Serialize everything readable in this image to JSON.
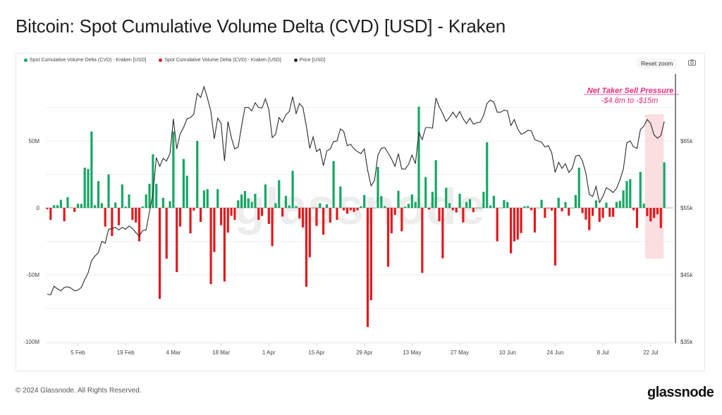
{
  "title": "Bitcoin: Spot Cumulative Volume Delta (CVD) [USD] - Kraken",
  "reset_zoom_label": "Reset zoom",
  "footer": "© 2024 Glassnode. All Rights Reserved.",
  "logo": "glassnode",
  "watermark": "glassnode",
  "icons": {
    "camera": "camera-icon"
  },
  "colors": {
    "positive": "#16a765",
    "negative": "#e3191d",
    "price": "#2b2b2b",
    "annotation": "#ec2a7c",
    "highlight": "#f9d3d6"
  },
  "chart_data": {
    "type": "bar+line",
    "title": "Bitcoin: Spot Cumulative Volume Delta (CVD) [USD] - Kraken",
    "legend": [
      {
        "name": "Spot Cumulative Volume Delta (CVD) - Kraken [USD]",
        "color": "#16a765"
      },
      {
        "name": "Spot Cumulative Volume Delta (CVD) - Kraken [USD]",
        "color": "#e3191d"
      },
      {
        "name": "Price [USD]",
        "color": "#2b2b2b"
      }
    ],
    "legend_placement": "top-left",
    "x_range_days": [
      0,
      181
    ],
    "x_ticks": [
      {
        "label": "5 Feb",
        "day": 9
      },
      {
        "label": "19 Feb",
        "day": 23
      },
      {
        "label": "4 Mar",
        "day": 37
      },
      {
        "label": "18 Mar",
        "day": 51
      },
      {
        "label": "1 Apr",
        "day": 65
      },
      {
        "label": "15 Apr",
        "day": 79
      },
      {
        "label": "29 Apr",
        "day": 93
      },
      {
        "label": "13 May",
        "day": 107
      },
      {
        "label": "27 May",
        "day": 121
      },
      {
        "label": "10 Jun",
        "day": 135
      },
      {
        "label": "24 Jun",
        "day": 149
      },
      {
        "label": "8 Jul",
        "day": 163
      },
      {
        "label": "22 Jul",
        "day": 177
      }
    ],
    "y_left": {
      "unit": "M USD",
      "range": [
        -100,
        85
      ],
      "ticks": [
        {
          "v": 50,
          "label": "50M"
        },
        {
          "v": 0,
          "label": "0"
        },
        {
          "v": -50,
          "label": "-50M"
        },
        {
          "v": -100,
          "label": "-100M"
        }
      ],
      "grid_step": 25
    },
    "y_right": {
      "unit": "k USD",
      "range": [
        35,
        74.5
      ],
      "ticks": [
        {
          "v": 65,
          "label": "$65k"
        },
        {
          "v": 55,
          "label": "$55k"
        },
        {
          "v": 45,
          "label": "$45k"
        },
        {
          "v": 35,
          "label": "$35k"
        }
      ]
    },
    "grid": true,
    "cvd_millions": [
      -1,
      -9,
      2,
      2,
      6,
      -10,
      8,
      0.3,
      -3,
      3,
      3,
      30,
      29,
      57,
      2,
      20,
      3.5,
      -14,
      25,
      -21,
      4,
      -13,
      17.5,
      1,
      10,
      -9,
      -11,
      -25,
      1,
      10,
      18,
      40,
      18,
      -68,
      7.5,
      -38,
      5,
      57,
      -48,
      -14,
      36.5,
      24,
      -19,
      -2,
      50,
      -10.5,
      13,
      14,
      -57,
      -33,
      14,
      -13,
      -55,
      -18.5,
      -6,
      -9,
      5.6,
      10,
      12.6,
      7,
      4.4,
      10.5,
      -9,
      -6,
      17.5,
      -12,
      -28.6,
      3.5,
      20.7,
      -6.5,
      9,
      1.8,
      27.7,
      1.4,
      -8,
      -14.6,
      -59,
      -37,
      0,
      -13.5,
      3.5,
      -20,
      2.6,
      -11,
      35,
      -9,
      16,
      -1.8,
      -4.4,
      -1.8,
      -3,
      -1.8,
      1.2,
      9.6,
      -89,
      -69,
      0,
      30.5,
      8.8,
      1.4,
      -44,
      -19,
      -5.3,
      12.8,
      -17.5,
      0.9,
      3,
      10,
      4.4,
      75.6,
      -48.6,
      23,
      -1.2,
      12,
      35.6,
      -10,
      -37.7,
      15,
      3.5,
      -1.8,
      -3.5,
      10.5,
      -10.9,
      4.4,
      6.5,
      -3.2,
      0,
      0,
      12,
      49,
      1.8,
      9,
      -25,
      0,
      5.8,
      4.4,
      -34,
      -25,
      -23.7,
      -18.8,
      1.2,
      1.4,
      -1.8,
      -18.4,
      0,
      6,
      -7.5,
      -0.5,
      -2,
      -43,
      7.5,
      -2.6,
      4.4,
      -5.8,
      0,
      9.6,
      30,
      -3.9,
      -8.8,
      -16.7,
      -6,
      5.6,
      -10.5,
      -7.5,
      3.9,
      -6.7,
      -6.7,
      4.4,
      5.3,
      13,
      20,
      21.4,
      -1.8,
      -15,
      26.8,
      3.2,
      -6.2,
      -10.1,
      -7.5,
      -4.8,
      -15,
      34
    ],
    "price_k": [
      42.1,
      42.0,
      43.3,
      42.9,
      42.6,
      43.1,
      43.2,
      43.0,
      42.6,
      42.7,
      43.1,
      44.3,
      45.3,
      47.1,
      47.8,
      48.3,
      50.0,
      49.7,
      51.8,
      51.9,
      52.1,
      51.7,
      52.1,
      51.8,
      52.3,
      51.9,
      51.3,
      50.8,
      51.6,
      51.7,
      54.5,
      57.1,
      62.5,
      61.2,
      62.4,
      62.0,
      63.1,
      68.3,
      63.8,
      66.1,
      67.0,
      68.3,
      68.5,
      69.0,
      72.1,
      71.5,
      73.1,
      71.4,
      69.4,
      65.3,
      68.4,
      67.6,
      62.0,
      67.9,
      65.5,
      63.8,
      64.1,
      67.2,
      70.0,
      70.0,
      69.5,
      70.7,
      70.0,
      69.9,
      71.3,
      69.7,
      65.5,
      66.0,
      68.5,
      67.8,
      68.9,
      69.4,
      71.6,
      69.1,
      70.6,
      70.0,
      67.2,
      63.9,
      65.6,
      63.4,
      63.8,
      61.3,
      63.5,
      63.8,
      64.9,
      65.0,
      66.8,
      66.4,
      64.3,
      64.5,
      63.8,
      63.4,
      63.1,
      63.8,
      60.6,
      58.3,
      59.1,
      62.9,
      63.9,
      64.0,
      63.2,
      62.3,
      61.2,
      63.1,
      60.8,
      60.8,
      61.5,
      62.9,
      61.6,
      66.3,
      65.2,
      67.0,
      67.0,
      66.9,
      71.4,
      70.1,
      69.1,
      67.9,
      68.5,
      69.3,
      68.5,
      69.4,
      68.3,
      67.6,
      68.4,
      67.5,
      67.7,
      67.8,
      68.8,
      70.6,
      71.1,
      70.8,
      69.3,
      69.3,
      69.6,
      69.5,
      67.3,
      68.2,
      66.8,
      66.0,
      66.2,
      66.6,
      66.5,
      65.2,
      65.0,
      64.8,
      64.1,
      64.3,
      63.2,
      60.3,
      61.8,
      60.9,
      61.6,
      60.3,
      60.9,
      62.7,
      62.9,
      62.0,
      60.2,
      57.0,
      56.7,
      58.2,
      55.8,
      56.7,
      58.0,
      57.7,
      57.3,
      57.9,
      59.2,
      60.8,
      64.7,
      65.0,
      64.1,
      63.9,
      66.7,
      67.2,
      68.2,
      67.6,
      65.9,
      65.4,
      65.8,
      67.9
    ],
    "annotation": {
      "title": "Net Taker Sell Pressure",
      "subtitle": "-$4.8m to -$15m",
      "highlight_days": [
        176,
        181
      ],
      "highlight_cvd_range": [
        -38,
        70
      ]
    }
  }
}
